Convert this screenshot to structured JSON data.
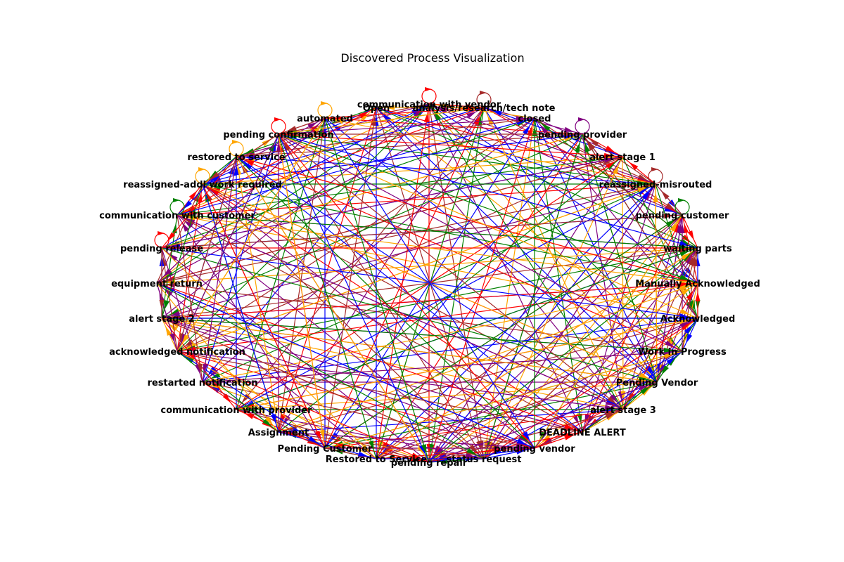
{
  "title": "Discovered Process Visualization",
  "edge_colors": [
    "#ff0000",
    "#0000ff",
    "#008000",
    "#ffa500",
    "#800080",
    "#a52a2a"
  ],
  "nodes": [
    {
      "id": "communication-with-vendor",
      "label": "communication with vendor",
      "self_loop": "#ff0000"
    },
    {
      "id": "open",
      "label": "Open"
    },
    {
      "id": "analysis-research-tech-note",
      "label": "analysis/research/tech note",
      "self_loop": "#a52a2a"
    },
    {
      "id": "closed",
      "label": "closed"
    },
    {
      "id": "pending-provider",
      "label": "pending provider",
      "self_loop": "#800080"
    },
    {
      "id": "alert-stage-1",
      "label": "alert stage 1"
    },
    {
      "id": "reassigned-misrouted",
      "label": "reassigned-misrouted",
      "self_loop": "#a52a2a"
    },
    {
      "id": "pending-customer",
      "label": "pending customer",
      "self_loop": "#008000"
    },
    {
      "id": "waiting-parts",
      "label": "waiting parts"
    },
    {
      "id": "manually-acknowledged",
      "label": "Manually Acknowledged"
    },
    {
      "id": "acknowledged",
      "label": "Acknowledged"
    },
    {
      "id": "work-in-progress",
      "label": "Work in Progress"
    },
    {
      "id": "pending-vendor-cap",
      "label": "Pending Vendor"
    },
    {
      "id": "alert-stage-3",
      "label": "alert stage 3"
    },
    {
      "id": "deadline-alert",
      "label": "DEADLINE ALERT"
    },
    {
      "id": "pending-vendor",
      "label": "pending vendor"
    },
    {
      "id": "status-request",
      "label": "status request"
    },
    {
      "id": "pending-repair",
      "label": "pending repair"
    },
    {
      "id": "restored-to-service-cap",
      "label": "Restored to Service"
    },
    {
      "id": "pending-customer-cap",
      "label": "Pending Customer"
    },
    {
      "id": "assignment",
      "label": "Assignment"
    },
    {
      "id": "communication-with-provider",
      "label": "communication with provider"
    },
    {
      "id": "restarted-notification",
      "label": "restarted notification"
    },
    {
      "id": "acknowledged-notification",
      "label": "acknowledged notification"
    },
    {
      "id": "alert-stage-2",
      "label": "alert stage 2"
    },
    {
      "id": "equipment-return",
      "label": "equipment return"
    },
    {
      "id": "pending-release",
      "label": "pending release",
      "self_loop": "#ff0000"
    },
    {
      "id": "communication-with-customer",
      "label": "communication with customer",
      "self_loop": "#008000"
    },
    {
      "id": "reassigned-addl-work-required",
      "label": "reassigned-addl work required",
      "self_loop": "#ffa500"
    },
    {
      "id": "restored-to-service",
      "label": "restored to service",
      "self_loop": "#ffa500"
    },
    {
      "id": "pending-confirmation",
      "label": "pending confirmation",
      "self_loop": "#ff0000"
    },
    {
      "id": "automated",
      "label": "automated",
      "self_loop": "#ffa500"
    }
  ]
}
